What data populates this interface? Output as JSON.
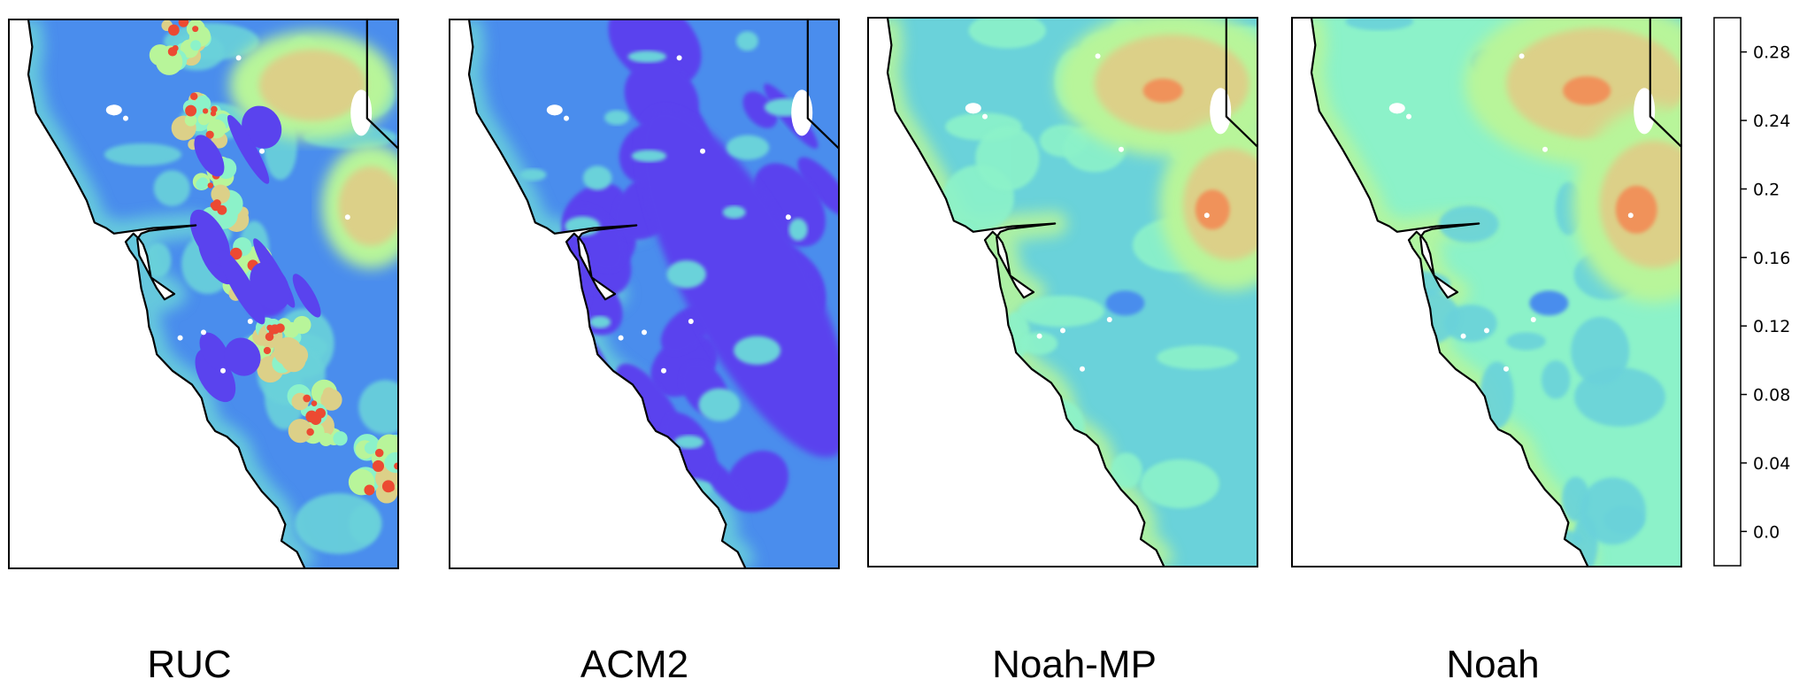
{
  "panels": [
    {
      "label": "RUC",
      "blob_scale": 0.45,
      "speckle": true,
      "base": "#4a8ded"
    },
    {
      "label": "ACM2",
      "blob_scale": 0.1,
      "speckle": false,
      "base": "#4a8ded"
    },
    {
      "label": "Noah-MP",
      "blob_scale": 0.75,
      "speckle": false,
      "base": "#6ad2da"
    },
    {
      "label": "Noah",
      "blob_scale": 0.9,
      "speckle": false,
      "base": "#8cf2c9"
    }
  ],
  "colorbar": {
    "ticks": [
      "0.0",
      "0.04",
      "0.08",
      "0.12",
      "0.16",
      "0.2",
      "0.24",
      "0.28"
    ],
    "bins": [
      0.0,
      0.04,
      0.08,
      0.12,
      0.16,
      0.2,
      0.24,
      0.28
    ],
    "colors": [
      "#5a43ee",
      "#4a8ded",
      "#6ad2da",
      "#8cf2c9",
      "#b8f59a",
      "#dcd088",
      "#f0925a",
      "#ec4a32"
    ]
  }
}
